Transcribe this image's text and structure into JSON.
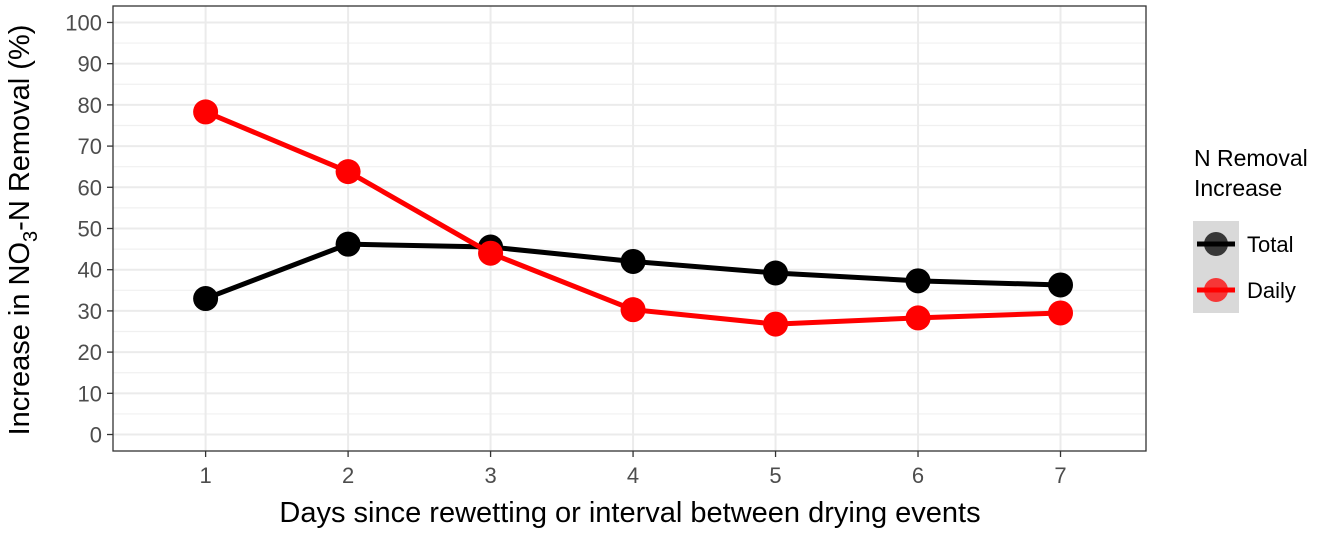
{
  "chart_data": {
    "type": "line",
    "xlabel": "Days since rewetting or interval between drying events",
    "ylabel": {
      "prefix": "Increase in NO",
      "subscript": "3",
      "suffix": "-N Removal (%)"
    },
    "x": [
      1,
      2,
      3,
      4,
      5,
      6,
      7
    ],
    "xlim": [
      0.35,
      7.6
    ],
    "ylim": [
      -4,
      104
    ],
    "yticks": [
      0,
      10,
      20,
      30,
      40,
      50,
      60,
      70,
      80,
      90,
      100
    ],
    "xticks": [
      1,
      2,
      3,
      4,
      5,
      6,
      7
    ],
    "grid": true,
    "legend": {
      "title_lines": [
        "N Removal",
        "Increase"
      ],
      "placement": "right"
    },
    "series": [
      {
        "name": "Total",
        "color": "#000000",
        "values": [
          33,
          46.2,
          45.5,
          42,
          39.2,
          37.3,
          36.3
        ]
      },
      {
        "name": "Daily",
        "color": "#ff0000",
        "values": [
          78.3,
          63.8,
          44,
          30.3,
          26.8,
          28.3,
          29.5
        ]
      }
    ]
  }
}
